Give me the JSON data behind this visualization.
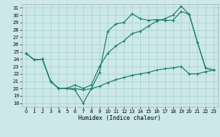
{
  "xlabel": "Humidex (Indice chaleur)",
  "bg_color": "#cce8e8",
  "grid_color": "#b0d4d4",
  "line_color": "#1a7a6e",
  "xlim": [
    -0.5,
    23.5
  ],
  "ylim": [
    17.5,
    31.5
  ],
  "xticks": [
    0,
    1,
    2,
    3,
    4,
    5,
    6,
    7,
    8,
    9,
    10,
    11,
    12,
    13,
    14,
    15,
    16,
    17,
    18,
    19,
    20,
    21,
    22,
    23
  ],
  "yticks": [
    18,
    19,
    20,
    21,
    22,
    23,
    24,
    25,
    26,
    27,
    28,
    29,
    30,
    31
  ],
  "line1_x": [
    0,
    1,
    2,
    3,
    4,
    5,
    6,
    7,
    8,
    9,
    10,
    11,
    12,
    13,
    14,
    15,
    16,
    17,
    18,
    19,
    20,
    21,
    22,
    23
  ],
  "line1_y": [
    24.8,
    23.9,
    24.0,
    21.0,
    20.0,
    20.0,
    19.8,
    18.0,
    20.0,
    22.2,
    27.8,
    28.8,
    29.0,
    30.2,
    29.5,
    29.3,
    29.4,
    29.3,
    29.3,
    30.5,
    30.1,
    26.3,
    22.8,
    22.5
  ],
  "line2_x": [
    0,
    1,
    2,
    3,
    4,
    5,
    6,
    7,
    8,
    9,
    10,
    11,
    12,
    13,
    14,
    15,
    16,
    17,
    18,
    19,
    20,
    21,
    22,
    23
  ],
  "line2_y": [
    24.8,
    23.9,
    24.0,
    21.0,
    20.0,
    20.0,
    20.5,
    20.0,
    20.5,
    23.0,
    24.8,
    25.8,
    26.5,
    27.5,
    27.8,
    28.5,
    29.2,
    29.5,
    30.0,
    31.2,
    30.1,
    26.3,
    22.8,
    22.5
  ],
  "line3_x": [
    0,
    1,
    2,
    3,
    4,
    5,
    6,
    7,
    8,
    9,
    10,
    11,
    12,
    13,
    14,
    15,
    16,
    17,
    18,
    19,
    20,
    21,
    22,
    23
  ],
  "line3_y": [
    24.8,
    23.9,
    24.0,
    21.0,
    20.0,
    20.0,
    20.0,
    19.8,
    20.0,
    20.3,
    20.8,
    21.2,
    21.5,
    21.8,
    22.0,
    22.2,
    22.5,
    22.7,
    22.8,
    23.0,
    22.0,
    22.0,
    22.3,
    22.5
  ]
}
